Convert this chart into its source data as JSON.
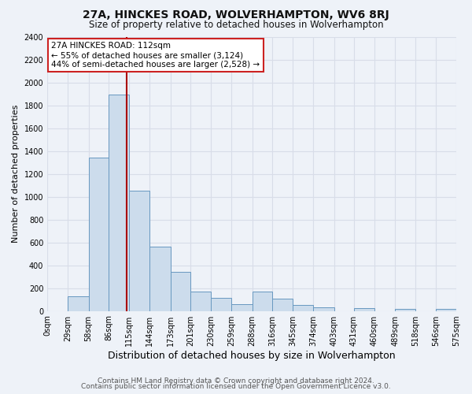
{
  "title": "27A, HINCKES ROAD, WOLVERHAMPTON, WV6 8RJ",
  "subtitle": "Size of property relative to detached houses in Wolverhampton",
  "xlabel": "Distribution of detached houses by size in Wolverhampton",
  "ylabel": "Number of detached properties",
  "bin_edges": [
    0,
    29,
    58,
    86,
    115,
    144,
    173,
    201,
    230,
    259,
    288,
    316,
    345,
    374,
    403,
    431,
    460,
    489,
    518,
    546,
    575
  ],
  "bin_labels": [
    "0sqm",
    "29sqm",
    "58sqm",
    "86sqm",
    "115sqm",
    "144sqm",
    "173sqm",
    "201sqm",
    "230sqm",
    "259sqm",
    "288sqm",
    "316sqm",
    "345sqm",
    "374sqm",
    "403sqm",
    "431sqm",
    "460sqm",
    "489sqm",
    "518sqm",
    "546sqm",
    "575sqm"
  ],
  "bar_heights": [
    0,
    130,
    1340,
    1890,
    1050,
    560,
    340,
    170,
    115,
    60,
    170,
    110,
    55,
    30,
    0,
    25,
    0,
    20,
    0,
    15
  ],
  "bar_color": "#ccdcec",
  "bar_edge_color": "#6898c0",
  "property_line_x": 112,
  "property_line_color": "#aa0000",
  "annotation_title": "27A HINCKES ROAD: 112sqm",
  "annotation_line1": "← 55% of detached houses are smaller (3,124)",
  "annotation_line2": "44% of semi-detached houses are larger (2,528) →",
  "annotation_box_facecolor": "#ffffff",
  "annotation_box_edgecolor": "#cc2222",
  "ylim": [
    0,
    2400
  ],
  "yticks": [
    0,
    200,
    400,
    600,
    800,
    1000,
    1200,
    1400,
    1600,
    1800,
    2000,
    2200,
    2400
  ],
  "footer_line1": "Contains HM Land Registry data © Crown copyright and database right 2024.",
  "footer_line2": "Contains public sector information licensed under the Open Government Licence v3.0.",
  "bg_color": "#eef2f8",
  "plot_bg_color": "#eef2f8",
  "grid_color": "#d8dde8",
  "title_fontsize": 10,
  "subtitle_fontsize": 8.5,
  "xlabel_fontsize": 9,
  "ylabel_fontsize": 8,
  "tick_fontsize": 7,
  "annotation_fontsize": 7.5,
  "footer_fontsize": 6.5
}
